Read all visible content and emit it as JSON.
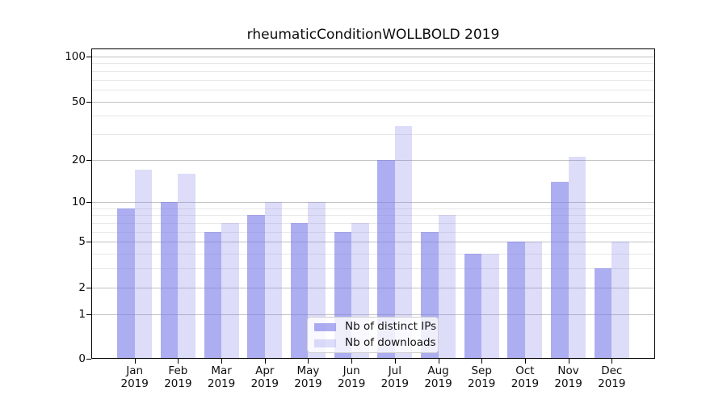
{
  "chart_data": {
    "type": "bar",
    "title": "rheumaticConditionWOLLBOLD 2019",
    "xlabel": "",
    "ylabel": "",
    "categories": [
      "Jan",
      "Feb",
      "Mar",
      "Apr",
      "May",
      "Jun",
      "Jul",
      "Aug",
      "Sep",
      "Oct",
      "Nov",
      "Dec"
    ],
    "year_label": "2019",
    "series": [
      {
        "name": "Nb of distinct IPs",
        "color": "rgba(122,122,232,0.62)",
        "color_hex": "#abapprox-f1",
        "values": [
          9,
          10,
          6,
          8,
          7,
          6,
          20,
          6,
          4,
          5,
          14,
          3
        ]
      },
      {
        "name": "Nb of downloads",
        "color": "rgba(122,122,232,0.26)",
        "color_hex": "#dcdcf9",
        "values": [
          17,
          16,
          7,
          10,
          10,
          7,
          34,
          8,
          4,
          5,
          21,
          5
        ]
      }
    ],
    "yscale": "log1p",
    "ylim": [
      0,
      113
    ],
    "y_major_ticks": [
      0,
      1,
      2,
      5,
      10,
      20,
      50,
      100
    ],
    "y_minor_ticks": [
      3,
      4,
      6,
      7,
      8,
      9,
      30,
      40,
      60,
      70,
      80,
      90
    ],
    "grid": true,
    "legend_position": "lower center",
    "colors": {
      "grid_major": "#c2c2c2",
      "grid_minor": "#e8e8e8",
      "spine": "#000000"
    }
  }
}
